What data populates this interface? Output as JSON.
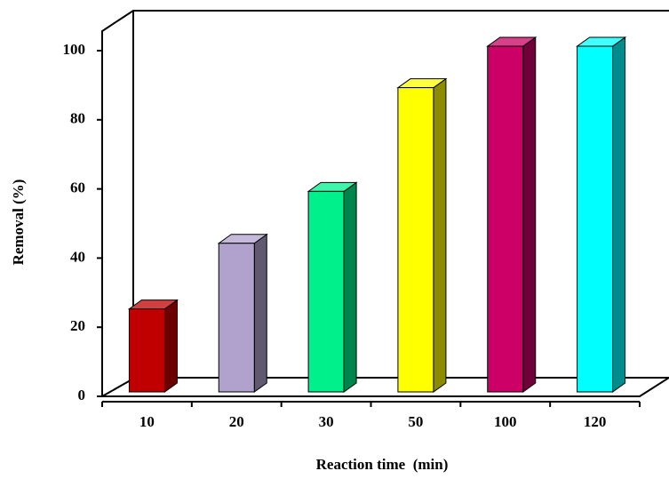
{
  "chart_data": {
    "type": "bar3d",
    "xlabel": "Reaction time  (min)",
    "ylabel": "Removal (%)",
    "categories": [
      "10",
      "20",
      "30",
      "50",
      "100",
      "120"
    ],
    "values": [
      24,
      43,
      58,
      88,
      100,
      100
    ],
    "colors": [
      "#c00000",
      "#b0a2cc",
      "#00f08c",
      "#ffff00",
      "#cc0066",
      "#00ffff"
    ],
    "ylim": [
      0,
      100
    ],
    "yticks": [
      0,
      20,
      40,
      60,
      80,
      100
    ],
    "grid": false
  }
}
